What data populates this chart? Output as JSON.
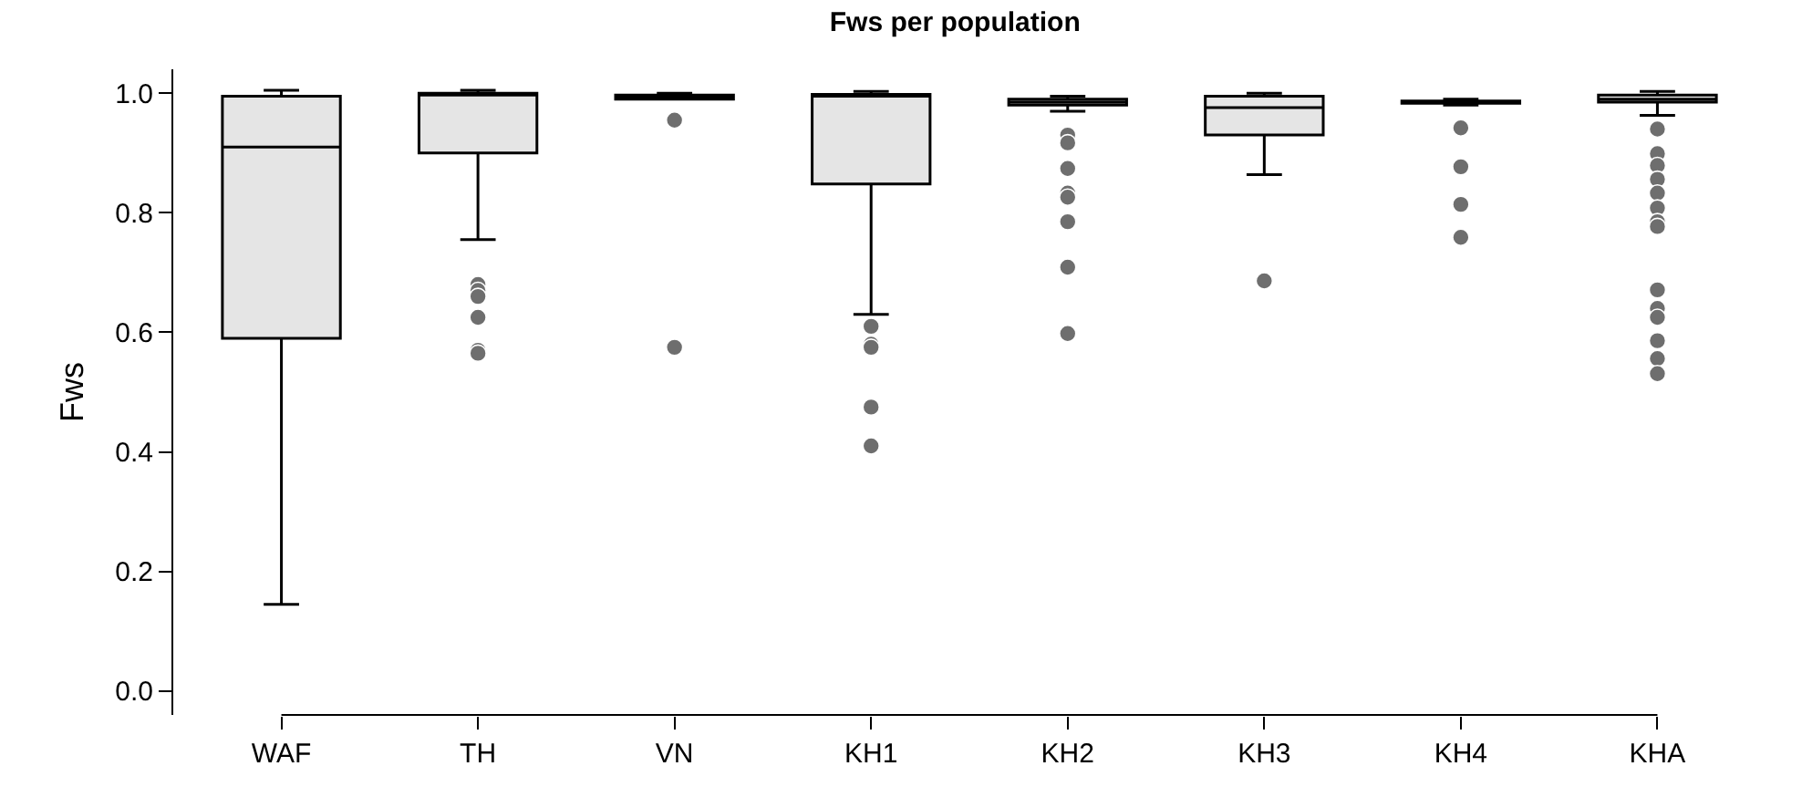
{
  "chart_data": {
    "type": "box",
    "title": "Fws per population",
    "ylabel": "Fws",
    "categories": [
      "WAF",
      "TH",
      "VN",
      "KH1",
      "KH2",
      "KH3",
      "KH4",
      "KHA"
    ],
    "ylim": [
      -0.04,
      1.04
    ],
    "yticks": [
      {
        "value": 0,
        "label": "0.0"
      },
      {
        "value": 0.2,
        "label": "0.2"
      },
      {
        "value": 0.4,
        "label": "0.4"
      },
      {
        "value": 0.6,
        "label": "0.6"
      },
      {
        "value": 0.8,
        "label": "0.8"
      },
      {
        "value": 1,
        "label": "1.0"
      }
    ],
    "grid": false,
    "series": [
      {
        "color": "#e5e5e5",
        "boxes": [
          {
            "low": 0.145,
            "q1": 0.59,
            "median": 0.91,
            "q3": 0.995,
            "high": 1.005
          },
          {
            "low": 0.755,
            "q1": 0.9,
            "median": 1.0,
            "q3": 1.0,
            "high": 1.005,
            "outliers": [
              0.68,
              0.67,
              0.66,
              0.625,
              0.57,
              0.565
            ]
          },
          {
            "low": 0.99,
            "q1": 0.99,
            "median": 0.995,
            "q3": 0.997,
            "high": 1.0,
            "outliers": [
              0.955,
              0.575
            ]
          },
          {
            "low": 0.63,
            "q1": 0.848,
            "median": 0.995,
            "q3": 0.998,
            "high": 1.003,
            "outliers": [
              0.61,
              0.58,
              0.575,
              0.475,
              0.41
            ]
          },
          {
            "low": 0.97,
            "q1": 0.98,
            "median": 0.985,
            "q3": 0.99,
            "high": 0.995,
            "outliers": [
              0.93,
              0.917,
              0.874,
              0.833,
              0.826,
              0.785,
              0.709,
              0.598
            ]
          },
          {
            "low": 0.864,
            "q1": 0.93,
            "median": 0.976,
            "q3": 0.995,
            "high": 1.0,
            "outliers": [
              0.686
            ]
          },
          {
            "low": 0.98,
            "q1": 0.983,
            "median": 0.985,
            "q3": 0.987,
            "high": 0.99,
            "outliers": [
              0.942,
              0.877,
              0.814,
              0.759
            ]
          },
          {
            "low": 0.963,
            "q1": 0.985,
            "median": 0.99,
            "q3": 0.997,
            "high": 1.003,
            "outliers": [
              0.94,
              0.899,
              0.879,
              0.856,
              0.833,
              0.808,
              0.785,
              0.777,
              0.671,
              0.64,
              0.625,
              0.586,
              0.556,
              0.531
            ]
          }
        ]
      }
    ]
  }
}
